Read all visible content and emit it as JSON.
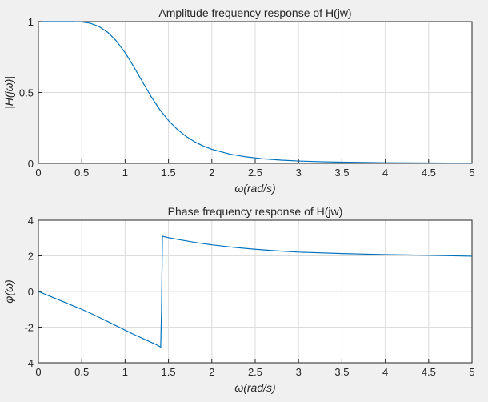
{
  "chart_data": [
    {
      "type": "line",
      "title": "Amplitude frequency response of H(jw)",
      "xlabel": "ω(rad/s)",
      "ylabel": "|H(jω)|",
      "xlim": [
        0,
        5
      ],
      "ylim": [
        0,
        1
      ],
      "xticks": [
        "0",
        "0.5",
        "1",
        "1.5",
        "2",
        "2.5",
        "3",
        "3.5",
        "4",
        "4.5",
        "5"
      ],
      "yticks": [
        "0",
        "0.5",
        "1"
      ],
      "grid": true,
      "series": [
        {
          "color": "#0072bd",
          "x": [
            0,
            0.1,
            0.2,
            0.3,
            0.4,
            0.5,
            0.6,
            0.7,
            0.8,
            0.9,
            1.0,
            1.1,
            1.2,
            1.3,
            1.4,
            1.5,
            1.6,
            1.7,
            1.8,
            1.9,
            2.0,
            2.2,
            2.4,
            2.6,
            2.8,
            3.0,
            3.25,
            3.5,
            3.75,
            4.0,
            4.25,
            4.5,
            4.75,
            5.0
          ],
          "y": [
            1.0,
            1.0,
            1.0,
            1.0,
            0.9999,
            0.9977,
            0.9882,
            0.9652,
            0.9243,
            0.8631,
            0.7809,
            0.6817,
            0.5749,
            0.4712,
            0.3792,
            0.3023,
            0.2402,
            0.1911,
            0.1528,
            0.1227,
            0.0992,
            0.066,
            0.045,
            0.0316,
            0.0227,
            0.0167,
            0.0117,
            0.0084,
            0.0062,
            0.0046,
            0.0035,
            0.0027,
            0.0021,
            0.0017
          ]
        }
      ]
    },
    {
      "type": "line",
      "title": "Phase frequency response of H(jw)",
      "xlabel": "ω(rad/s)",
      "ylabel": "φ(ω)",
      "xlim": [
        0,
        5
      ],
      "ylim": [
        -4,
        4
      ],
      "xticks": [
        "0",
        "0.5",
        "1",
        "1.5",
        "2",
        "2.5",
        "3",
        "3.5",
        "4",
        "4.5",
        "5"
      ],
      "yticks": [
        "-4",
        "-2",
        "0",
        "2",
        "4"
      ],
      "grid": true,
      "series": [
        {
          "color": "#0072bd",
          "x": [
            0,
            0.1,
            0.2,
            0.3,
            0.4,
            0.5,
            0.6,
            0.7,
            0.8,
            0.9,
            1.0,
            1.1,
            1.2,
            1.3,
            1.35,
            1.41,
            1.42,
            1.43,
            1.5,
            1.6,
            1.8,
            2.0,
            2.25,
            2.5,
            2.75,
            3.0,
            3.5,
            4.0,
            4.5,
            5.0
          ],
          "y": [
            0,
            -0.2,
            -0.4,
            -0.6,
            -0.8,
            -1.0,
            -1.22,
            -1.45,
            -1.69,
            -1.93,
            -2.17,
            -2.41,
            -2.63,
            -2.85,
            -2.96,
            -3.12,
            -1.0,
            3.1,
            3.02,
            2.93,
            2.76,
            2.62,
            2.48,
            2.37,
            2.28,
            2.21,
            2.13,
            2.07,
            2.03,
            1.98
          ]
        }
      ]
    }
  ]
}
